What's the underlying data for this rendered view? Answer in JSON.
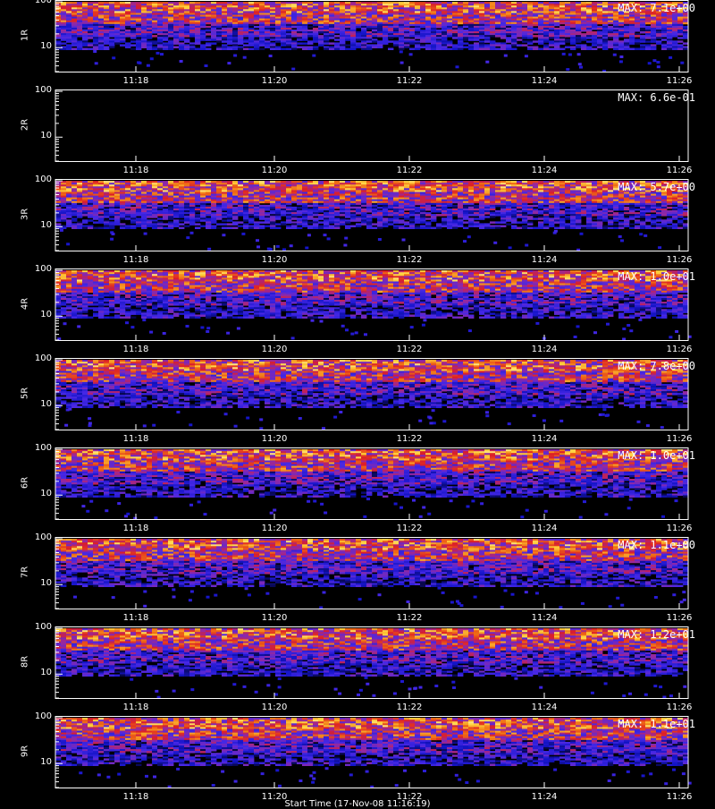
{
  "figure": {
    "x_ticks": [
      "11:18",
      "11:20",
      "11:22",
      "11:24",
      "11:26"
    ],
    "y_ticks": [
      "100",
      "10"
    ],
    "bottom_text": "Start Time (17-Nov-08 11:16:19)"
  },
  "chart_data": [
    {
      "type": "heatmap",
      "ylabel": "1R",
      "max_label": "MAX: 7.1e+00",
      "max_value": 7.1,
      "empty": false,
      "band_top": 100,
      "band_bottom": 9
    },
    {
      "type": "heatmap",
      "ylabel": "2R",
      "max_label": "MAX: 6.6e-01",
      "max_value": 0.66,
      "empty": true,
      "band_top": 100,
      "band_bottom": 9
    },
    {
      "type": "heatmap",
      "ylabel": "3R",
      "max_label": "MAX: 5.7e+00",
      "max_value": 5.7,
      "empty": false,
      "band_top": 100,
      "band_bottom": 9
    },
    {
      "type": "heatmap",
      "ylabel": "4R",
      "max_label": "MAX: 1.0e+01",
      "max_value": 10,
      "empty": false,
      "band_top": 100,
      "band_bottom": 9
    },
    {
      "type": "heatmap",
      "ylabel": "5R",
      "max_label": "MAX: 7.8e+00",
      "max_value": 7.8,
      "empty": false,
      "band_top": 100,
      "band_bottom": 9
    },
    {
      "type": "heatmap",
      "ylabel": "6R",
      "max_label": "MAX: 1.0e+01",
      "max_value": 10,
      "empty": false,
      "band_top": 100,
      "band_bottom": 9
    },
    {
      "type": "heatmap",
      "ylabel": "7R",
      "max_label": "MAX: 1.1e+00",
      "max_value": 1.1,
      "empty": false,
      "band_top": 100,
      "band_bottom": 9
    },
    {
      "type": "heatmap",
      "ylabel": "8R",
      "max_label": "MAX: 1.2e+01",
      "max_value": 12,
      "empty": false,
      "band_top": 100,
      "band_bottom": 9
    },
    {
      "type": "heatmap",
      "ylabel": "9R",
      "max_label": "MAX: 1.1e+01",
      "max_value": 11,
      "empty": false,
      "band_top": 100,
      "band_bottom": 9
    }
  ]
}
